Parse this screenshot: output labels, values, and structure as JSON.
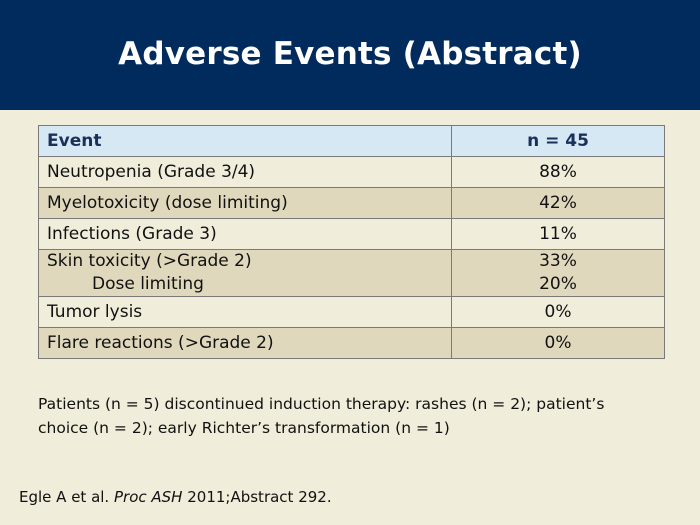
{
  "slide": {
    "title": "Adverse Events (Abstract)"
  },
  "table": {
    "headers": [
      "Event",
      "n = 45"
    ],
    "rows": [
      {
        "event": "Neutropenia (Grade 3/4)",
        "value": "88%"
      },
      {
        "event": "Myelotoxicity (dose limiting)",
        "value": "42%"
      },
      {
        "event": "Infections (Grade 3)",
        "value": "11%"
      },
      {
        "event": "Skin toxicity (>Grade 2)",
        "value": "33%",
        "sub_event": "Dose limiting",
        "sub_value": "20%"
      },
      {
        "event": "Tumor lysis",
        "value": "0%"
      },
      {
        "event": "Flare reactions (>Grade 2)",
        "value": "0%"
      }
    ]
  },
  "note": "Patients (n = 5) discontinued induction therapy: rashes (n = 2); patient’s choice (n = 2); early Richter’s transformation (n = 1)",
  "citation": {
    "authors": "Egle A et al.",
    "journal": "Proc ASH",
    "details": "2011;Abstract 292."
  }
}
